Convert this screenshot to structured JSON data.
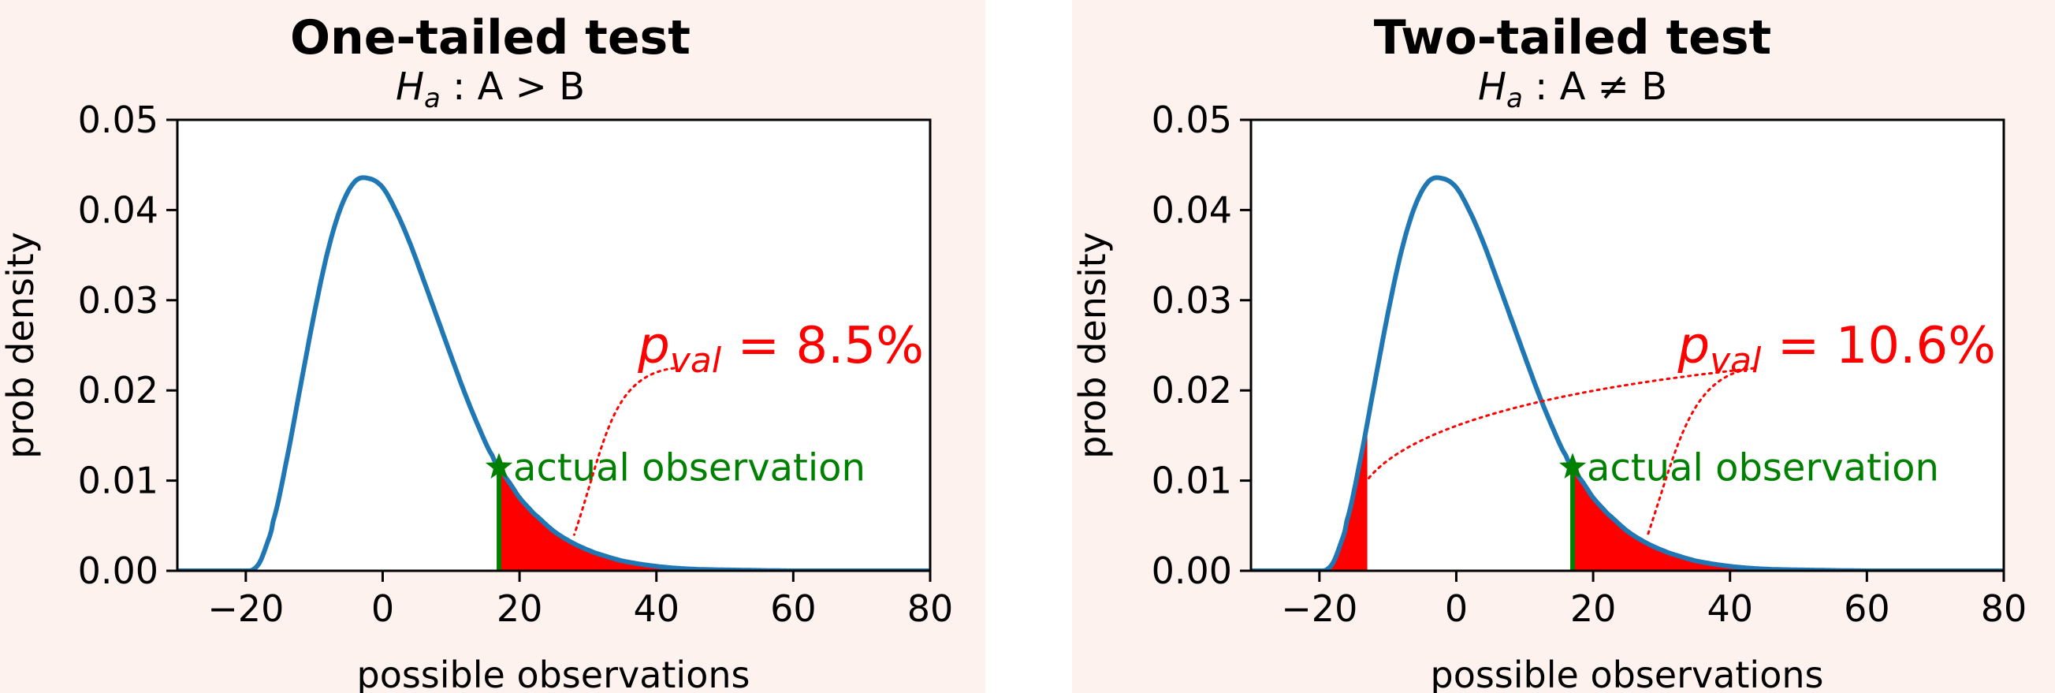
{
  "colors": {
    "panel_background": "#fdf2ee",
    "curve": "#1f77b4",
    "tail_fill": "#ff0000",
    "observation": "#008000",
    "annotation": "#ff0000"
  },
  "chart_data": [
    {
      "type": "area",
      "title": "One-tailed test",
      "subtitle_symbol": "H",
      "subtitle_subscript": "a",
      "subtitle_rest": " : A > B",
      "xlabel": "possible observations",
      "ylabel": "prob density",
      "xlim": [
        -30,
        80
      ],
      "ylim": [
        0,
        0.05
      ],
      "xticks": [
        -20,
        0,
        20,
        40,
        60,
        80
      ],
      "xtick_labels": [
        "−20",
        "0",
        "20",
        "40",
        "60",
        "80"
      ],
      "yticks": [
        0.0,
        0.01,
        0.02,
        0.03,
        0.04,
        0.05
      ],
      "ytick_labels": [
        "0.00",
        "0.01",
        "0.02",
        "0.03",
        "0.04",
        "0.05"
      ],
      "curve": {
        "x": [
          -30,
          -20,
          -19,
          -18,
          -17,
          -16,
          -14,
          -12,
          -10,
          -8,
          -6,
          -4,
          -2,
          0,
          2,
          4,
          6,
          8,
          10,
          12,
          14,
          16,
          17,
          18,
          20,
          22,
          25,
          28,
          31,
          35,
          40,
          45,
          50,
          60,
          70,
          80
        ],
        "y": [
          0,
          0,
          0.0001,
          0.0009,
          0.0028,
          0.0055,
          0.0124,
          0.0205,
          0.0285,
          0.0355,
          0.0405,
          0.0432,
          0.0435,
          0.0425,
          0.0398,
          0.0363,
          0.0322,
          0.028,
          0.0238,
          0.0197,
          0.016,
          0.0128,
          0.0115,
          0.0103,
          0.0081,
          0.0064,
          0.0044,
          0.003,
          0.002,
          0.0011,
          0.0005,
          0.0002,
          0.0001,
          0,
          0,
          0
        ]
      },
      "shaded_regions": [
        [
          17,
          80
        ]
      ],
      "observation": {
        "x": 17,
        "y": 0.0115,
        "label": "actual observation"
      },
      "pval": {
        "prefix": "p",
        "subscript": "val",
        "value_text": " = 8.5%"
      },
      "annotation_points": [
        [
          28,
          0.004
        ]
      ]
    },
    {
      "type": "area",
      "title": "Two-tailed test",
      "subtitle_symbol": "H",
      "subtitle_subscript": "a",
      "subtitle_rest": " : A ≠ B",
      "xlabel": "possible observations",
      "ylabel": "prob density",
      "xlim": [
        -30,
        80
      ],
      "ylim": [
        0,
        0.05
      ],
      "xticks": [
        -20,
        0,
        20,
        40,
        60,
        80
      ],
      "xtick_labels": [
        "−20",
        "0",
        "20",
        "40",
        "60",
        "80"
      ],
      "yticks": [
        0.0,
        0.01,
        0.02,
        0.03,
        0.04,
        0.05
      ],
      "ytick_labels": [
        "0.00",
        "0.01",
        "0.02",
        "0.03",
        "0.04",
        "0.05"
      ],
      "curve": {
        "x": [
          -30,
          -20,
          -19,
          -18,
          -17,
          -16,
          -14,
          -12,
          -10,
          -8,
          -6,
          -4,
          -2,
          0,
          2,
          4,
          6,
          8,
          10,
          12,
          14,
          16,
          17,
          18,
          20,
          22,
          25,
          28,
          31,
          35,
          40,
          45,
          50,
          60,
          70,
          80
        ],
        "y": [
          0,
          0,
          0.0001,
          0.0009,
          0.0028,
          0.0055,
          0.0124,
          0.0205,
          0.0285,
          0.0355,
          0.0405,
          0.0432,
          0.0435,
          0.0425,
          0.0398,
          0.0363,
          0.0322,
          0.028,
          0.0238,
          0.0197,
          0.016,
          0.0128,
          0.0115,
          0.0103,
          0.0081,
          0.0064,
          0.0044,
          0.003,
          0.002,
          0.0011,
          0.0005,
          0.0002,
          0.0001,
          0,
          0,
          0
        ]
      },
      "shaded_regions": [
        [
          -20,
          -13
        ],
        [
          17,
          80
        ]
      ],
      "observation": {
        "x": 17,
        "y": 0.0115,
        "label": "actual observation"
      },
      "pval": {
        "prefix": "p",
        "subscript": "val",
        "value_text": " = 10.6%"
      },
      "annotation_points": [
        [
          28,
          0.004
        ],
        [
          -14.5,
          0.008
        ]
      ]
    }
  ]
}
